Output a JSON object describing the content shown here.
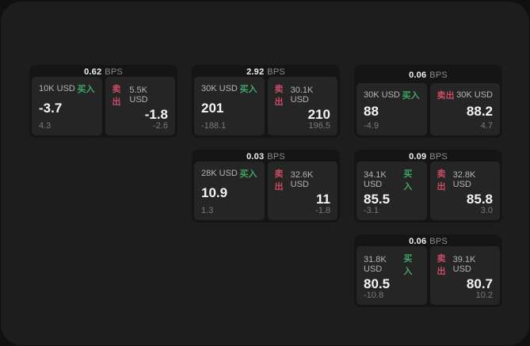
{
  "labels": {
    "buy": "买入",
    "sell": "卖出",
    "bps_unit": "BPS"
  },
  "colors": {
    "backdrop": "#101010",
    "window_bg": "#1d1d1e",
    "card_bg": "#151516",
    "panel_bg": "#252526",
    "buy_green": "#3fa862",
    "sell_red": "#c94b62",
    "value_white": "#f4f4f4",
    "muted_gray": "#8b8b8b"
  },
  "cards": [
    {
      "bps": "0.62",
      "buy": {
        "size": "10K USD",
        "value": "-3.7",
        "delta": "4.3"
      },
      "sell": {
        "size": "5.5K USD",
        "value": "-1.8",
        "delta": "-2.6"
      }
    },
    {
      "bps": "2.92",
      "buy": {
        "size": "30K USD",
        "value": "201",
        "delta": "-188.1"
      },
      "sell": {
        "size": "30.1K USD",
        "value": "210",
        "delta": "196.5"
      }
    },
    {
      "bps": "0.06",
      "buy": {
        "size": "30K USD",
        "value": "88",
        "delta": "-4.9"
      },
      "sell": {
        "size": "30K USD",
        "value": "88.2",
        "delta": "4.7"
      }
    },
    {
      "bps": "0.03",
      "buy": {
        "size": "28K USD",
        "value": "10.9",
        "delta": "1.3"
      },
      "sell": {
        "size": "32.6K USD",
        "value": "11",
        "delta": "-1.8"
      }
    },
    {
      "bps": "0.09",
      "buy": {
        "size": "34.1K USD",
        "value": "85.5",
        "delta": "-3.1"
      },
      "sell": {
        "size": "32.8K USD",
        "value": "85.8",
        "delta": "3.0"
      }
    },
    {
      "bps": "0.06",
      "buy": {
        "size": "31.8K USD",
        "value": "80.5",
        "delta": "-10.8"
      },
      "sell": {
        "size": "39.1K USD",
        "value": "80.7",
        "delta": "10.2"
      }
    }
  ]
}
